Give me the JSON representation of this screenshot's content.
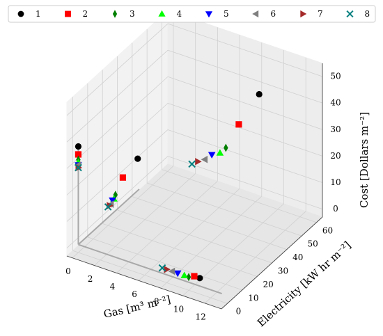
{
  "chart_data": {
    "type": "scatter",
    "projection": "3d",
    "xlabel": "Gas [m³ m⁻²]",
    "ylabel": "Electricity [kW hr m⁻²]",
    "zlabel": "Cost [Dollars m⁻²]",
    "x_ticks": [
      "0",
      "2",
      "4",
      "6",
      "8",
      "10",
      "12"
    ],
    "y_ticks": [
      "0",
      "10",
      "20",
      "30",
      "40",
      "50",
      "60"
    ],
    "z_ticks": [
      "0",
      "10",
      "20",
      "30",
      "40",
      "50"
    ],
    "xlim": [
      0,
      13
    ],
    "ylim": [
      0,
      60
    ],
    "zlim": [
      0,
      50
    ],
    "grid": true,
    "legend_position": "top",
    "series": [
      {
        "name": "1",
        "marker": "circle",
        "color": "#000000",
        "points": [
          [
            0,
            0,
            37
          ],
          [
            11,
            0,
            3
          ],
          [
            0,
            40,
            12
          ],
          [
            11,
            40,
            52
          ]
        ]
      },
      {
        "name": "2",
        "marker": "square",
        "color": "#ff0000",
        "points": [
          [
            0,
            0,
            34
          ],
          [
            10.5,
            0,
            3
          ],
          [
            0,
            30,
            10
          ],
          [
            10.5,
            30,
            45
          ]
        ]
      },
      {
        "name": "3",
        "marker": "thin_diamond",
        "color": "#007f00",
        "points": [
          [
            0,
            0,
            32
          ],
          [
            10,
            0,
            2
          ],
          [
            0,
            25,
            6
          ],
          [
            10,
            25,
            38
          ]
        ]
      },
      {
        "name": "4",
        "marker": "triangle_up",
        "color": "#00ff00",
        "points": [
          [
            0,
            0,
            31
          ],
          [
            9.6,
            0,
            2
          ],
          [
            0,
            24,
            5
          ],
          [
            9.6,
            24,
            36
          ]
        ]
      },
      {
        "name": "5",
        "marker": "triangle_down",
        "color": "#0000ff",
        "points": [
          [
            0,
            0,
            30
          ],
          [
            9,
            0,
            2
          ],
          [
            0,
            23,
            5
          ],
          [
            9,
            23,
            35
          ]
        ]
      },
      {
        "name": "6",
        "marker": "triangle_left",
        "color": "#7f7f7f",
        "points": [
          [
            0,
            0,
            30
          ],
          [
            8.5,
            0,
            2
          ],
          [
            0,
            22,
            4
          ],
          [
            8.5,
            22,
            33
          ]
        ]
      },
      {
        "name": "7",
        "marker": "triangle_right",
        "color": "#a52a2a",
        "points": [
          [
            0,
            0,
            29
          ],
          [
            8,
            0,
            2
          ],
          [
            0,
            21,
            4
          ],
          [
            8,
            21,
            32
          ]
        ]
      },
      {
        "name": "8",
        "marker": "x",
        "color": "#007f7f",
        "points": [
          [
            0,
            0,
            29
          ],
          [
            7.6,
            0,
            2
          ],
          [
            0,
            20,
            4
          ],
          [
            7.6,
            20,
            31
          ]
        ]
      }
    ]
  }
}
